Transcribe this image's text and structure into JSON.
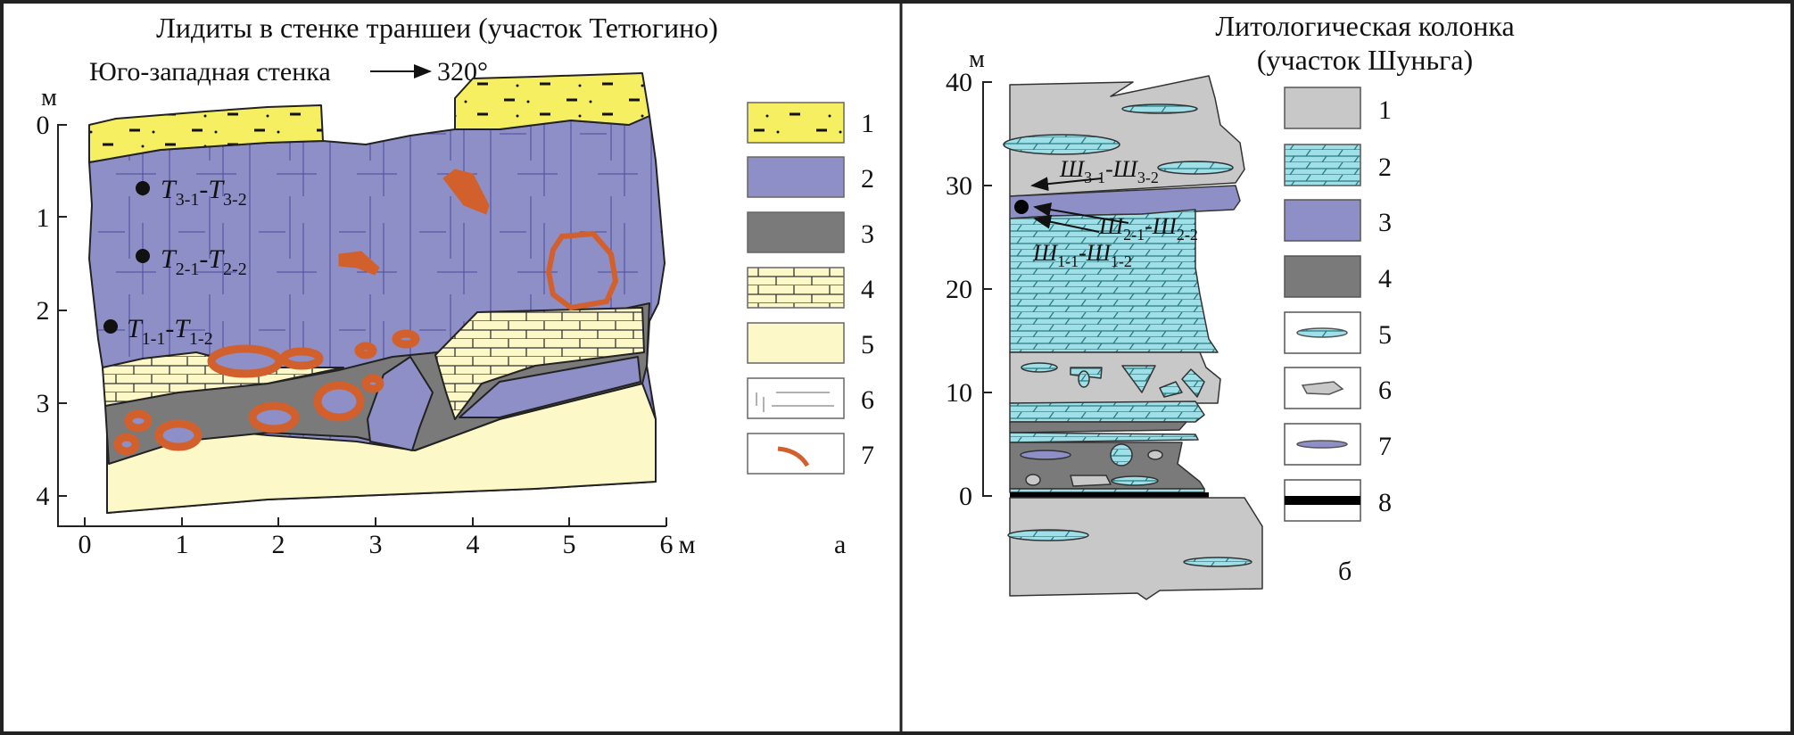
{
  "left_panel": {
    "title": "Лидиты в стенке траншеи (участок Тетюгино)",
    "subtitle": "Юго-западная стенка",
    "azimuth": "320°",
    "y_unit": "м",
    "y_ticks": [
      "0",
      "1",
      "2",
      "3",
      "4"
    ],
    "x_ticks": [
      "0",
      "1",
      "2",
      "3",
      "4",
      "5",
      "6"
    ],
    "x_unit": "м",
    "panel_letter": "а",
    "samples": [
      {
        "main": "T",
        "s1": "3-1",
        "s2": "3-2"
      },
      {
        "main": "T",
        "s1": "2-1",
        "s2": "2-2"
      },
      {
        "main": "T",
        "s1": "1-1",
        "s2": "1-2"
      }
    ],
    "legend": [
      "1",
      "2",
      "3",
      "4",
      "5",
      "6",
      "7"
    ]
  },
  "right_panel": {
    "title_line1": "Литологическая колонка",
    "title_line2": "(участок Шуньга)",
    "y_unit": "м",
    "y_ticks": [
      "40",
      "30",
      "20",
      "10",
      "0"
    ],
    "panel_letter": "б",
    "samples": [
      {
        "main": "Ш",
        "s1": "3-1",
        "s2": "3-2"
      },
      {
        "main": "Ш",
        "s1": "2-1",
        "s2": "2-2"
      },
      {
        "main": "Ш",
        "s1": "1-1",
        "s2": "1-2"
      }
    ],
    "legend": [
      "1",
      "2",
      "3",
      "4",
      "5",
      "6",
      "7",
      "8"
    ]
  },
  "colors": {
    "sandstone_yellow": "#f7ef62",
    "lydite_purple": "#8e8fc6",
    "shale_dark": "#7a7a7a",
    "limestone_cream": "#fdf8c8",
    "cream_plain": "#fdf8c8",
    "ochre_red": "#d1602c",
    "gray_rock": "#c8c8c8",
    "dolomite_cyan": "#9fdfe8"
  }
}
